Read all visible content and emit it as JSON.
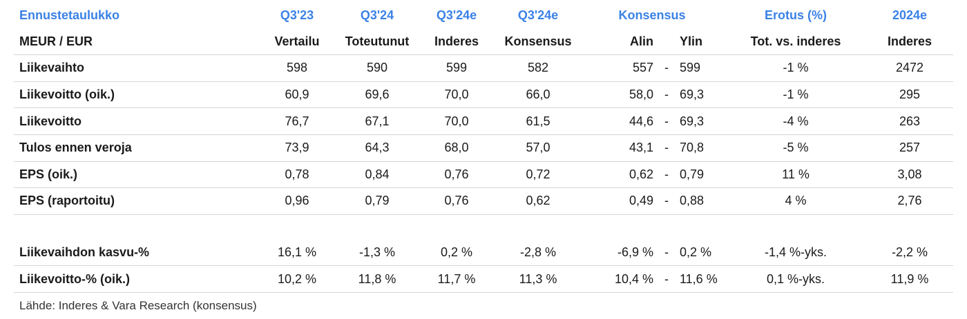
{
  "table": {
    "header1": {
      "title": "Ennustetaulukko",
      "c1": "Q3'23",
      "c2": "Q3'24",
      "c3": "Q3'24e",
      "c4": "Q3'24e",
      "konsensus": "Konsensus",
      "erotus": "Erotus (%)",
      "c7": "2024e"
    },
    "header2": {
      "title": "MEUR / EUR",
      "c1": "Vertailu",
      "c2": "Toteutunut",
      "c3": "Inderes",
      "c4": "Konsensus",
      "alin": "Alin",
      "ylin": "Ylin",
      "erotus": "Tot. vs. inderes",
      "c7": "Inderes"
    },
    "rows": [
      {
        "label": "Liikevaihto",
        "c1": "598",
        "c2": "590",
        "c3": "599",
        "c4": "582",
        "alin": "557",
        "dash": "-",
        "ylin": "599",
        "erotus": "-1 %",
        "c7": "2472"
      },
      {
        "label": "Liikevoitto (oik.)",
        "c1": "60,9",
        "c2": "69,6",
        "c3": "70,0",
        "c4": "66,0",
        "alin": "58,0",
        "dash": "-",
        "ylin": "69,3",
        "erotus": "-1 %",
        "c7": "295"
      },
      {
        "label": "Liikevoitto",
        "c1": "76,7",
        "c2": "67,1",
        "c3": "70,0",
        "c4": "61,5",
        "alin": "44,6",
        "dash": "-",
        "ylin": "69,3",
        "erotus": "-4 %",
        "c7": "263"
      },
      {
        "label": "Tulos ennen veroja",
        "c1": "73,9",
        "c2": "64,3",
        "c3": "68,0",
        "c4": "57,0",
        "alin": "43,1",
        "dash": "-",
        "ylin": "70,8",
        "erotus": "-5 %",
        "c7": "257"
      },
      {
        "label": "EPS (oik.)",
        "c1": "0,78",
        "c2": "0,84",
        "c3": "0,76",
        "c4": "0,72",
        "alin": "0,62",
        "dash": "-",
        "ylin": "0,79",
        "erotus": "11 %",
        "c7": "3,08"
      },
      {
        "label": "EPS (raportoitu)",
        "c1": "0,96",
        "c2": "0,79",
        "c3": "0,76",
        "c4": "0,62",
        "alin": "0,49",
        "dash": "-",
        "ylin": "0,88",
        "erotus": "4 %",
        "c7": "2,76"
      },
      {
        "label": "Liikevaihdon kasvu-%",
        "c1": "16,1 %",
        "c2": "-1,3 %",
        "c3": "0,2 %",
        "c4": "-2,8 %",
        "alin": "-6,9 %",
        "dash": "-",
        "ylin": "0,2 %",
        "erotus": "-1,4 %-yks.",
        "c7": "-2,2 %"
      },
      {
        "label": "Liikevoitto-% (oik.)",
        "c1": "10,2 %",
        "c2": "11,8 %",
        "c3": "11,7 %",
        "c4": "11,3 %",
        "alin": "10,4 %",
        "dash": "-",
        "ylin": "11,6 %",
        "erotus": "0,1 %-yks.",
        "c7": "11,9 %"
      }
    ],
    "source": "Lähde: Inderes & Vara Research  (konsensus)"
  },
  "colors": {
    "header_blue": "#3b82e6",
    "divider": "#d5d5d5"
  }
}
